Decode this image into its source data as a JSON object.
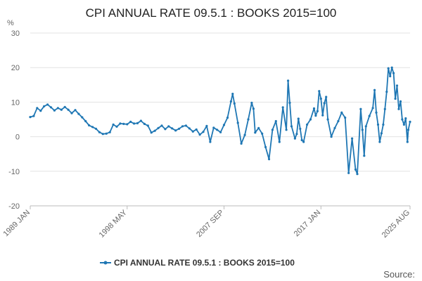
{
  "chart_data": {
    "type": "line",
    "title": "CPI ANNUAL RATE 09.5.1 : BOOKS 2015=100",
    "ylabel": "%",
    "xlabel": "",
    "ylim": [
      -20,
      30
    ],
    "yticks": [
      30,
      20,
      10,
      0,
      -10,
      -20
    ],
    "xlim": [
      "1989 JAN",
      "2025 AUG"
    ],
    "x_tick_labels": [
      "1989 JAN",
      "1998 MAY",
      "2007 SEP",
      "2017 JAN",
      "2025 AUG"
    ],
    "x_tick_index": [
      0,
      112,
      224,
      336,
      439
    ],
    "legend": "bottom-center",
    "grid": true,
    "source_label": "Source:",
    "series": [
      {
        "name": "CPI ANNUAL RATE 09.5.1 : BOOKS 2015=100",
        "color": "#1f77b4",
        "points": [
          [
            0,
            5.7
          ],
          [
            4,
            6.0
          ],
          [
            8,
            8.3
          ],
          [
            12,
            7.5
          ],
          [
            16,
            8.8
          ],
          [
            20,
            9.3
          ],
          [
            24,
            8.5
          ],
          [
            28,
            7.6
          ],
          [
            32,
            8.3
          ],
          [
            36,
            7.8
          ],
          [
            40,
            8.6
          ],
          [
            44,
            7.8
          ],
          [
            48,
            6.8
          ],
          [
            52,
            7.7
          ],
          [
            56,
            6.6
          ],
          [
            60,
            5.6
          ],
          [
            64,
            4.5
          ],
          [
            68,
            3.3
          ],
          [
            72,
            2.8
          ],
          [
            76,
            2.3
          ],
          [
            80,
            1.3
          ],
          [
            84,
            0.8
          ],
          [
            88,
            0.9
          ],
          [
            92,
            1.3
          ],
          [
            96,
            3.5
          ],
          [
            100,
            2.9
          ],
          [
            104,
            3.8
          ],
          [
            108,
            3.7
          ],
          [
            112,
            3.6
          ],
          [
            116,
            4.3
          ],
          [
            120,
            3.8
          ],
          [
            124,
            3.9
          ],
          [
            128,
            4.6
          ],
          [
            132,
            3.7
          ],
          [
            136,
            3.2
          ],
          [
            140,
            1.2
          ],
          [
            144,
            1.7
          ],
          [
            148,
            2.5
          ],
          [
            152,
            3.2
          ],
          [
            156,
            2.2
          ],
          [
            160,
            3.0
          ],
          [
            164,
            2.4
          ],
          [
            168,
            1.8
          ],
          [
            172,
            2.3
          ],
          [
            176,
            3.0
          ],
          [
            180,
            3.2
          ],
          [
            184,
            2.4
          ],
          [
            188,
            1.5
          ],
          [
            192,
            2.1
          ],
          [
            196,
            0.6
          ],
          [
            200,
            1.4
          ],
          [
            204,
            3.1
          ],
          [
            208,
            -1.5
          ],
          [
            212,
            2.6
          ],
          [
            216,
            2.0
          ],
          [
            220,
            1.3
          ],
          [
            224,
            3.4
          ],
          [
            228,
            5.5
          ],
          [
            232,
            10.2
          ],
          [
            234,
            12.4
          ],
          [
            236,
            9.6
          ],
          [
            240,
            4.0
          ],
          [
            244,
            -2.0
          ],
          [
            248,
            0.5
          ],
          [
            252,
            5.0
          ],
          [
            256,
            9.8
          ],
          [
            258,
            8.1
          ],
          [
            260,
            1.2
          ],
          [
            264,
            2.5
          ],
          [
            268,
            0.9
          ],
          [
            272,
            -3.0
          ],
          [
            276,
            -6.5
          ],
          [
            280,
            2.0
          ],
          [
            284,
            4.5
          ],
          [
            288,
            -1.5
          ],
          [
            292,
            8.5
          ],
          [
            296,
            2.0
          ],
          [
            298,
            16.2
          ],
          [
            300,
            9.8
          ],
          [
            302,
            3.0
          ],
          [
            306,
            -0.5
          ],
          [
            308,
            0.8
          ],
          [
            310,
            5.2
          ],
          [
            312,
            2.3
          ],
          [
            314,
            -1.0
          ],
          [
            316,
            -1.5
          ],
          [
            320,
            3.5
          ],
          [
            324,
            5.0
          ],
          [
            328,
            8.2
          ],
          [
            330,
            6.1
          ],
          [
            332,
            7.4
          ],
          [
            334,
            13.2
          ],
          [
            336,
            11.0
          ],
          [
            338,
            6.2
          ],
          [
            340,
            9.7
          ],
          [
            342,
            11.5
          ],
          [
            344,
            5.0
          ],
          [
            348,
            0.0
          ],
          [
            352,
            2.5
          ],
          [
            356,
            4.5
          ],
          [
            360,
            7.0
          ],
          [
            364,
            5.5
          ],
          [
            368,
            -10.5
          ],
          [
            372,
            -0.5
          ],
          [
            376,
            -9.5
          ],
          [
            378,
            -10.8
          ],
          [
            382,
            8.0
          ],
          [
            384,
            2.0
          ],
          [
            386,
            -5.5
          ],
          [
            388,
            3.0
          ],
          [
            392,
            6.0
          ],
          [
            396,
            8.3
          ],
          [
            398,
            13.5
          ],
          [
            400,
            7.0
          ],
          [
            402,
            3.5
          ],
          [
            404,
            -1.5
          ],
          [
            406,
            1.0
          ],
          [
            408,
            3.5
          ],
          [
            410,
            8.0
          ],
          [
            412,
            13.0
          ],
          [
            414,
            19.8
          ],
          [
            416,
            17.5
          ],
          [
            418,
            20.0
          ],
          [
            420,
            18.4
          ],
          [
            422,
            11.0
          ],
          [
            424,
            14.8
          ],
          [
            426,
            8.0
          ],
          [
            428,
            10.2
          ],
          [
            430,
            5.0
          ],
          [
            432,
            3.5
          ],
          [
            434,
            5.3
          ],
          [
            436,
            -1.5
          ],
          [
            437,
            2.0
          ],
          [
            439,
            4.3
          ]
        ]
      }
    ]
  }
}
